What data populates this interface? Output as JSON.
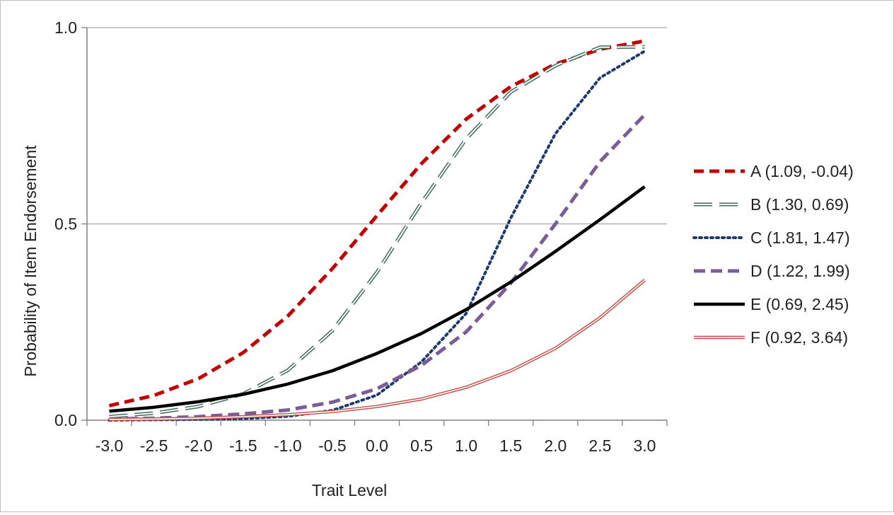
{
  "chart_data": {
    "type": "line",
    "title": "",
    "xlabel": "Trait Level",
    "ylabel": "Probability of Item Endorsement",
    "xlim": [
      -3.2,
      3.5
    ],
    "ylim": [
      0,
      1
    ],
    "x_ticks": [
      "-3.0",
      "-2.5",
      "-2.0",
      "-1.5",
      "-1.0",
      "-0.5",
      "0.0",
      "0.5",
      "1.0",
      "1.5",
      "2.0",
      "2.5",
      "3.0"
    ],
    "y_ticks": [
      "0.0",
      "0.5",
      "1.0"
    ],
    "grid": "horizontal",
    "legend_position": "right",
    "x": [
      -3.0,
      -2.5,
      -2.0,
      -1.5,
      -1.0,
      -0.5,
      0.0,
      0.5,
      1.0,
      1.5,
      2.0,
      2.5,
      3.0
    ],
    "series": [
      {
        "name": "A (1.09, -0.04)",
        "color": "#c00000",
        "style": "dashed-bold",
        "values": [
          0.037,
          0.063,
          0.106,
          0.172,
          0.265,
          0.386,
          0.521,
          0.654,
          0.767,
          0.85,
          0.907,
          0.945,
          0.966
        ]
      },
      {
        "name": "B (1.30, 0.69)",
        "color": "#3f6b5a",
        "style": "long-dash-hollow",
        "values": [
          0.009,
          0.018,
          0.035,
          0.067,
          0.127,
          0.228,
          0.377,
          0.554,
          0.717,
          0.836,
          0.903,
          0.95,
          0.951
        ]
      },
      {
        "name": "C (1.81, 1.47)",
        "color": "#1f3a6e",
        "style": "dotted",
        "values": [
          0.0,
          0.001,
          0.002,
          0.004,
          0.01,
          0.025,
          0.064,
          0.149,
          0.272,
          0.515,
          0.73,
          0.872,
          0.94
        ]
      },
      {
        "name": "D (1.22, 1.99)",
        "color": "#7a5c99",
        "style": "dashed",
        "values": [
          0.003,
          0.005,
          0.009,
          0.016,
          0.026,
          0.046,
          0.08,
          0.14,
          0.225,
          0.349,
          0.5,
          0.659,
          0.778
        ]
      },
      {
        "name": "E (0.69, 2.45)",
        "color": "#000000",
        "style": "solid-bold",
        "values": [
          0.023,
          0.033,
          0.047,
          0.066,
          0.092,
          0.126,
          0.17,
          0.221,
          0.282,
          0.352,
          0.43,
          0.511,
          0.595
        ]
      },
      {
        "name": "F (0.92, 3.64)",
        "color": "#c0504d",
        "style": "double",
        "values": [
          0.002,
          0.003,
          0.005,
          0.009,
          0.014,
          0.022,
          0.035,
          0.054,
          0.084,
          0.126,
          0.183,
          0.261,
          0.357
        ]
      }
    ]
  }
}
